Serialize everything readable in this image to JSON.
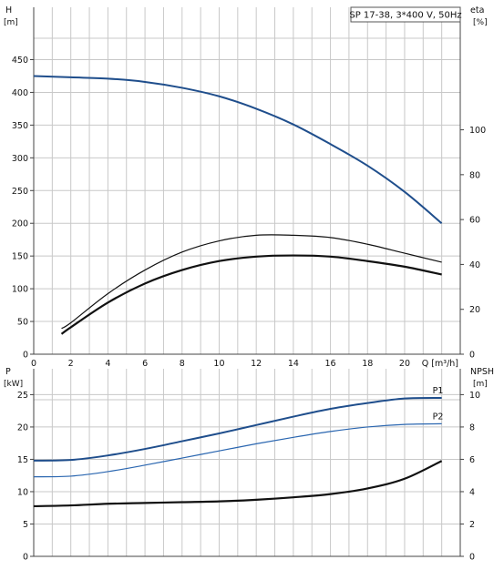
{
  "chart_data": [
    {
      "type": "line",
      "panel": "top",
      "title": "SP 17-38, 3*400 V, 50Hz",
      "xlabel": "Q [m³/h]",
      "ylabel": "H",
      "ylabel_unit": "[m]",
      "y2label": "eta",
      "y2label_unit": "[%]",
      "xlim": [
        0,
        23
      ],
      "ylim": [
        0,
        530
      ],
      "y2lim": [
        0,
        154.6
      ],
      "x_ticks": [
        0,
        2,
        4,
        6,
        8,
        10,
        12,
        14,
        16,
        18,
        20
      ],
      "y_ticks": [
        0,
        50,
        100,
        150,
        200,
        250,
        300,
        350,
        400,
        450
      ],
      "y2_ticks": [
        0,
        20,
        40,
        60,
        80,
        100
      ],
      "grid": true,
      "series": [
        {
          "name": "",
          "axis": "left",
          "color": "#1f4e8c",
          "x": [
            0,
            2,
            4,
            6,
            8,
            10,
            12,
            14,
            16,
            18,
            20,
            22
          ],
          "y": [
            425,
            423,
            421,
            416,
            407,
            394,
            375,
            351,
            321,
            288,
            248,
            200
          ]
        },
        {
          "name": "",
          "axis": "right",
          "color": "#111111",
          "x": [
            1.5,
            2,
            4,
            6,
            8,
            10,
            12,
            14,
            16,
            18,
            20,
            22
          ],
          "y": [
            11.5,
            14,
            27,
            37.5,
            45.5,
            50.5,
            53,
            53,
            52,
            49,
            45,
            41
          ]
        },
        {
          "name": "",
          "axis": "right",
          "color": "#111111",
          "x": [
            1.5,
            2,
            4,
            6,
            8,
            10,
            12,
            14,
            16,
            18,
            20,
            22
          ],
          "y": [
            9,
            12,
            23,
            31.5,
            37.5,
            41.5,
            43.5,
            44,
            43.5,
            41.5,
            39,
            35.5
          ]
        }
      ]
    },
    {
      "type": "line",
      "panel": "bottom",
      "ylabel": "P",
      "ylabel_unit": "[kW]",
      "y2label": "NPSH",
      "y2label_unit": "[m]",
      "xlim": [
        0,
        23
      ],
      "ylim": [
        0,
        29
      ],
      "y2lim": [
        0,
        11.6
      ],
      "y_ticks": [
        0,
        5,
        10,
        15,
        20,
        25
      ],
      "y2_ticks": [
        0,
        2,
        4,
        6,
        8,
        10
      ],
      "grid": true,
      "series": [
        {
          "name": "P1",
          "axis": "left",
          "color": "#1f4e8c",
          "x": [
            0,
            2,
            4,
            6,
            8,
            10,
            12,
            14,
            16,
            18,
            20,
            22
          ],
          "y": [
            14.8,
            14.9,
            15.6,
            16.6,
            17.8,
            19.0,
            20.3,
            21.6,
            22.8,
            23.7,
            24.4,
            24.5
          ]
        },
        {
          "name": "P2",
          "axis": "left",
          "color": "#2a66b0",
          "x": [
            0,
            2,
            4,
            6,
            8,
            10,
            12,
            14,
            16,
            18,
            20,
            22
          ],
          "y": [
            12.3,
            12.4,
            13.1,
            14.1,
            15.2,
            16.3,
            17.4,
            18.4,
            19.3,
            20.0,
            20.4,
            20.5
          ]
        },
        {
          "name": "",
          "axis": "right",
          "color": "#111111",
          "x": [
            0,
            2,
            4,
            6,
            8,
            10,
            12,
            14,
            16,
            18,
            20,
            22
          ],
          "y": [
            3.1,
            3.15,
            3.25,
            3.3,
            3.35,
            3.4,
            3.5,
            3.65,
            3.85,
            4.2,
            4.8,
            5.9
          ]
        }
      ]
    }
  ]
}
